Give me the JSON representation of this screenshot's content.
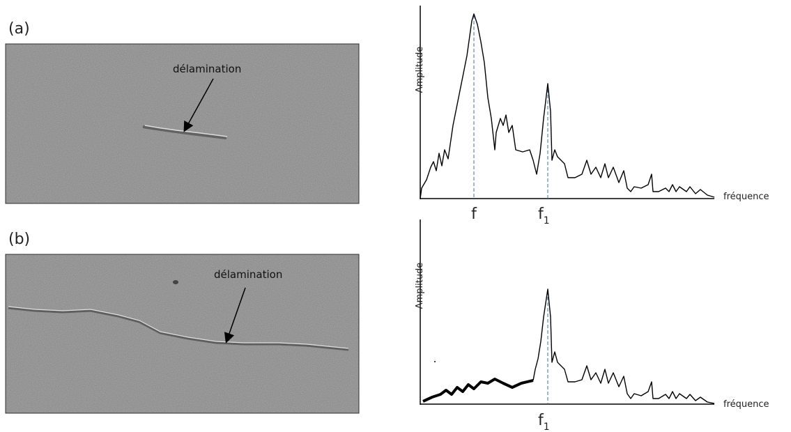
{
  "panel_a": {
    "label": "(a)",
    "annotation": "délamination",
    "spectrum": {
      "y_label": "Amplitude",
      "x_label": "fréquence",
      "peak_1": "f",
      "peak_2": {
        "base": "f",
        "subscript": "1"
      }
    }
  },
  "panel_b": {
    "label": "(b)",
    "annotation": "délamination",
    "spectrum": {
      "y_label": "Amplitude",
      "x_label": "fréquence",
      "peak": {
        "base": "f",
        "subscript": "1"
      }
    }
  }
}
